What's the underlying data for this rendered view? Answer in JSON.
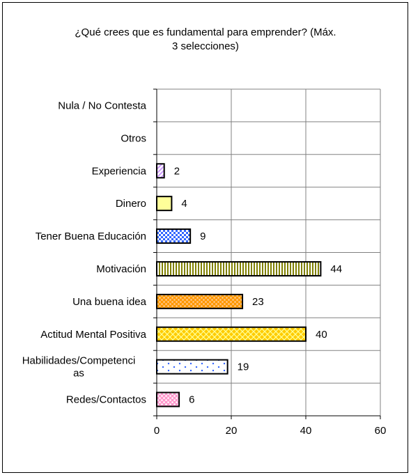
{
  "chart_data": {
    "type": "bar",
    "orientation": "horizontal",
    "title_lines": [
      "¿Qué crees que es fundamental para emprender? (Máx.",
      "3 selecciones)"
    ],
    "categories": [
      "Nula / No Contesta",
      "Otros",
      "Experiencia",
      "Dinero",
      "Tener Buena Educación",
      "Motivación",
      "Una buena idea",
      "Actitud Mental Positiva",
      "Habilidades/Competencias",
      "Redes/Contactos"
    ],
    "category_label_lines": [
      [
        "Nula / No Contesta"
      ],
      [
        "Otros"
      ],
      [
        "Experiencia"
      ],
      [
        "Dinero"
      ],
      [
        "Tener Buena Educación"
      ],
      [
        "Motivación"
      ],
      [
        "Una buena idea"
      ],
      [
        "Actitud Mental Positiva"
      ],
      [
        "Habilidades/Competenci",
        "as"
      ],
      [
        "Redes/Contactos"
      ]
    ],
    "values": [
      null,
      null,
      2,
      4,
      9,
      44,
      23,
      40,
      19,
      6
    ],
    "data_labels": [
      "",
      "",
      "2",
      "4",
      "9",
      "44",
      "23",
      "40",
      "19",
      "6"
    ],
    "xlim": [
      0,
      60
    ],
    "x_ticks": [
      0,
      20,
      40,
      60
    ],
    "x_tick_labels": [
      "0",
      "20",
      "40",
      "60"
    ],
    "grid": "vertical",
    "legend": "none",
    "bar_fills": [
      {
        "pattern": "none"
      },
      {
        "pattern": "none"
      },
      {
        "pattern": "diagonal",
        "bg": "#ffffff",
        "fg": "#cc99ff"
      },
      {
        "pattern": "solid",
        "bg": "#ffff99",
        "fg": "#ffff99"
      },
      {
        "pattern": "checker",
        "bg": "#ffffff",
        "fg": "#3366ff"
      },
      {
        "pattern": "vertical-stripes",
        "bg": "#ffffff",
        "fg": "#808000"
      },
      {
        "pattern": "dots",
        "bg": "#ff9900",
        "fg": "#ffcc99"
      },
      {
        "pattern": "diamond",
        "bg": "#ffcc00",
        "fg": "#ffff99"
      },
      {
        "pattern": "sparse-dots",
        "bg": "#ffffff",
        "fg": "#3366ff"
      },
      {
        "pattern": "dots",
        "bg": "#ff99cc",
        "fg": "#ffffff"
      }
    ],
    "bar_outline_color": "#000000",
    "grid_color": "#808080"
  }
}
